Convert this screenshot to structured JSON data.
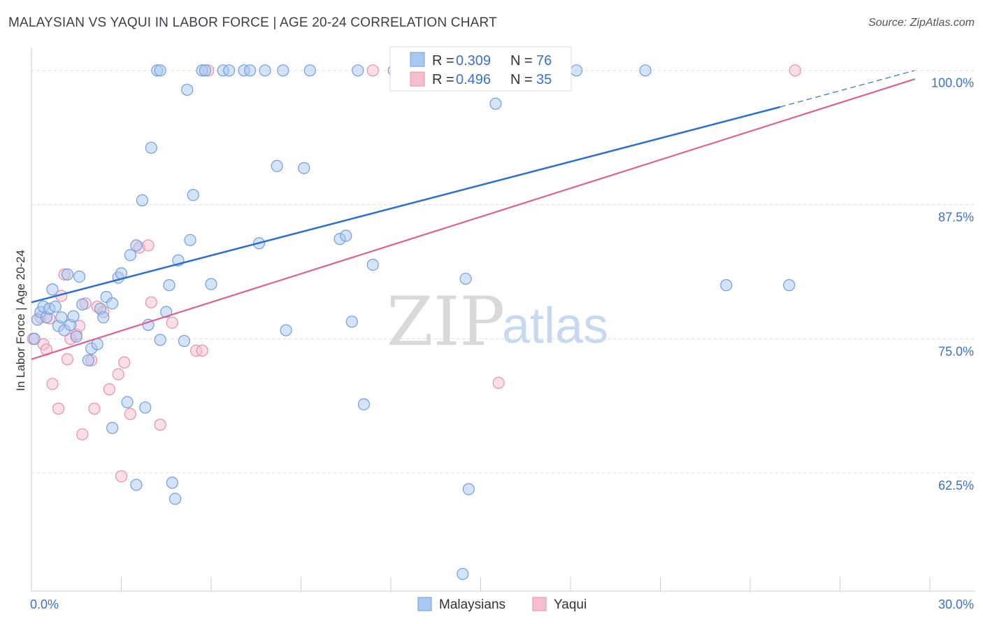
{
  "title": "MALAYSIAN VS YAQUI IN LABOR FORCE | AGE 20-24 CORRELATION CHART",
  "source": "Source: ZipAtlas.com",
  "watermark": {
    "part1": "ZIP",
    "part2": "atlas"
  },
  "colors": {
    "blue_fill": "#a9c8f0",
    "blue_stroke": "#6f9fdd",
    "blue_line": "#2f6fcf",
    "pink_fill": "#f6bfd0",
    "pink_stroke": "#ea8fab",
    "pink_line": "#e0608f",
    "tick_text": "#3a72c8",
    "grid": "#dddddd"
  },
  "chart_data": {
    "type": "scatter",
    "title": "MALAYSIAN VS YAQUI IN LABOR FORCE | AGE 20-24 CORRELATION CHART",
    "xlabel": "",
    "ylabel": "In Labor Force | Age 20-24",
    "xlim": [
      0,
      30
    ],
    "ylim": [
      51.5,
      102
    ],
    "x_tick_labels": [
      {
        "value": 0,
        "label": "0.0%"
      },
      {
        "value": 30,
        "label": "30.0%"
      }
    ],
    "y_tick_labels": [
      {
        "value": 100,
        "label": "100.0%"
      },
      {
        "value": 87.5,
        "label": "87.5%"
      },
      {
        "value": 75,
        "label": "75.0%"
      },
      {
        "value": 62.5,
        "label": "62.5%"
      }
    ],
    "legend": [
      {
        "name": "Malaysians",
        "R_label": "R =",
        "R": "0.309",
        "N_label": "N =",
        "N": "76"
      },
      {
        "name": "Yaqui",
        "R_label": "R =",
        "R": "0.496",
        "N_label": "N =",
        "N": "35"
      }
    ],
    "series": [
      {
        "name": "Malaysians",
        "trend": {
          "x0": 0,
          "y0": 78.4,
          "x1": 25,
          "y1": 96.6,
          "dash_to_x": 29.5,
          "dash_to_y": 100
        },
        "points": [
          [
            0.1,
            75
          ],
          [
            0.2,
            76.8
          ],
          [
            0.3,
            77.5
          ],
          [
            0.4,
            78
          ],
          [
            0.5,
            77
          ],
          [
            0.6,
            77.8
          ],
          [
            0.7,
            79.6
          ],
          [
            0.8,
            78
          ],
          [
            0.9,
            76.2
          ],
          [
            1,
            77
          ],
          [
            1.1,
            75.8
          ],
          [
            1.2,
            81
          ],
          [
            1.3,
            76.3
          ],
          [
            1.4,
            77.1
          ],
          [
            1.5,
            75.2
          ],
          [
            1.6,
            80.8
          ],
          [
            1.7,
            78.2
          ],
          [
            1.9,
            73
          ],
          [
            2,
            74.1
          ],
          [
            2.2,
            74.5
          ],
          [
            2.3,
            77.8
          ],
          [
            2.4,
            77
          ],
          [
            2.5,
            78.9
          ],
          [
            2.7,
            78.3
          ],
          [
            2.7,
            66.7
          ],
          [
            2.9,
            80.7
          ],
          [
            3,
            81.1
          ],
          [
            3.2,
            69.1
          ],
          [
            3.3,
            82.8
          ],
          [
            3.5,
            83.7
          ],
          [
            3.5,
            61.4
          ],
          [
            3.7,
            87.9
          ],
          [
            3.8,
            68.6
          ],
          [
            3.9,
            76.3
          ],
          [
            4,
            92.8
          ],
          [
            4.2,
            100
          ],
          [
            4.3,
            100
          ],
          [
            4.3,
            74.9
          ],
          [
            4.5,
            77.5
          ],
          [
            4.6,
            80
          ],
          [
            4.7,
            61.6
          ],
          [
            4.8,
            60.1
          ],
          [
            4.9,
            82.3
          ],
          [
            5.1,
            74.8
          ],
          [
            5.2,
            98.2
          ],
          [
            5.3,
            84.2
          ],
          [
            5.4,
            88.4
          ],
          [
            5.7,
            100
          ],
          [
            5.8,
            100
          ],
          [
            6,
            80.1
          ],
          [
            6.4,
            100
          ],
          [
            6.6,
            100
          ],
          [
            7.1,
            100
          ],
          [
            7.3,
            100
          ],
          [
            7.6,
            83.9
          ],
          [
            7.8,
            100
          ],
          [
            8.2,
            91.1
          ],
          [
            8.4,
            100
          ],
          [
            8.5,
            75.8
          ],
          [
            9.1,
            90.9
          ],
          [
            9.3,
            100
          ],
          [
            10.3,
            84.3
          ],
          [
            10.5,
            84.6
          ],
          [
            10.7,
            76.6
          ],
          [
            10.9,
            100
          ],
          [
            11.1,
            68.9
          ],
          [
            11.4,
            81.9
          ],
          [
            12.1,
            100
          ],
          [
            14.4,
            53.1
          ],
          [
            14.5,
            80.6
          ],
          [
            14.6,
            61
          ],
          [
            15.5,
            96.9
          ],
          [
            18.2,
            100
          ],
          [
            20.5,
            100
          ],
          [
            23.2,
            80
          ],
          [
            25.3,
            80
          ]
        ]
      },
      {
        "name": "Yaqui",
        "trend": {
          "x0": 0,
          "y0": 73.1,
          "x1": 29.5,
          "y1": 99.2
        },
        "points": [
          [
            0.05,
            75
          ],
          [
            0.3,
            77
          ],
          [
            0.4,
            74.5
          ],
          [
            0.5,
            74
          ],
          [
            0.6,
            76.9
          ],
          [
            0.7,
            70.8
          ],
          [
            0.9,
            68.5
          ],
          [
            1,
            79
          ],
          [
            1.1,
            81
          ],
          [
            1.2,
            73.1
          ],
          [
            1.3,
            75
          ],
          [
            1.5,
            75.4
          ],
          [
            1.6,
            76.2
          ],
          [
            1.7,
            66.1
          ],
          [
            1.8,
            78.3
          ],
          [
            2,
            73
          ],
          [
            2.1,
            68.5
          ],
          [
            2.2,
            78
          ],
          [
            2.4,
            77.5
          ],
          [
            2.6,
            70.3
          ],
          [
            2.9,
            71.7
          ],
          [
            3,
            62.2
          ],
          [
            3.1,
            72.8
          ],
          [
            3.3,
            68
          ],
          [
            3.6,
            83.5
          ],
          [
            3.9,
            83.7
          ],
          [
            4,
            78.4
          ],
          [
            4.3,
            67
          ],
          [
            4.7,
            76.5
          ],
          [
            5.5,
            73.9
          ],
          [
            5.7,
            73.9
          ],
          [
            5.9,
            100
          ],
          [
            11.4,
            100
          ],
          [
            15.6,
            70.9
          ],
          [
            25.5,
            100
          ]
        ]
      }
    ]
  }
}
